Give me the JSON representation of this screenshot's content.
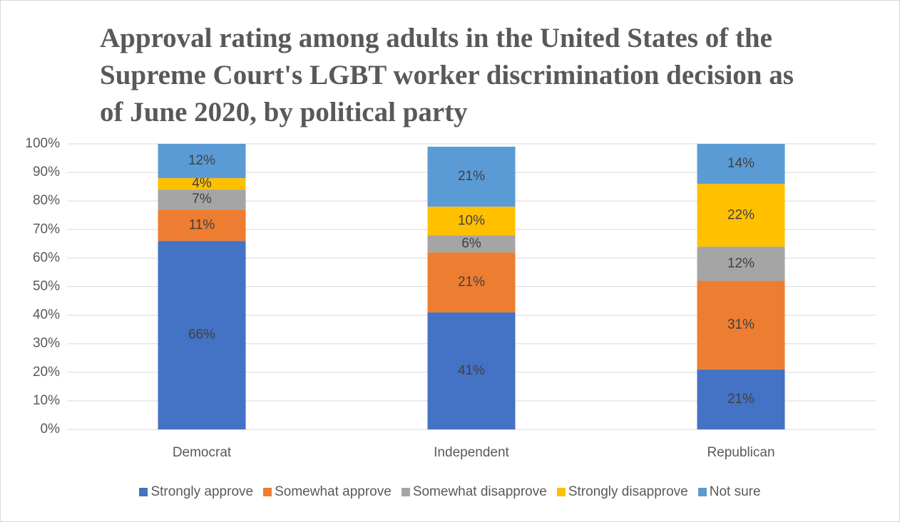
{
  "chart_data": {
    "type": "stacked_bar",
    "title": "Approval rating among adults in the United States of the Supreme Court's LGBT worker discrimination decision as of June 2020, by political party",
    "categories": [
      "Democrat",
      "Independent",
      "Republican"
    ],
    "series": [
      {
        "name": "Strongly approve",
        "color": "#4472c4",
        "values": [
          66,
          41,
          21
        ],
        "value_labels": [
          "66%",
          "41%",
          "21%"
        ]
      },
      {
        "name": "Somewhat approve",
        "color": "#ed7d31",
        "values": [
          11,
          21,
          31
        ],
        "value_labels": [
          "11%",
          "21%",
          "31%"
        ]
      },
      {
        "name": "Somewhat disapprove",
        "color": "#a5a5a5",
        "values": [
          7,
          6,
          12
        ],
        "value_labels": [
          "7%",
          "6%",
          "12%"
        ]
      },
      {
        "name": "Strongly disapprove",
        "color": "#ffc000",
        "values": [
          4,
          10,
          22
        ],
        "value_labels": [
          "4%",
          "10%",
          "22%"
        ]
      },
      {
        "name": "Not sure",
        "color": "#5b9bd5",
        "values": [
          12,
          21,
          14
        ],
        "value_labels": [
          "12%",
          "21%",
          "14%"
        ]
      }
    ],
    "ylim": [
      0,
      100
    ],
    "yticks": [
      {
        "value": 0,
        "label": "0%"
      },
      {
        "value": 10,
        "label": "10%"
      },
      {
        "value": 20,
        "label": "20%"
      },
      {
        "value": 30,
        "label": "30%"
      },
      {
        "value": 40,
        "label": "40%"
      },
      {
        "value": 50,
        "label": "50%"
      },
      {
        "value": 60,
        "label": "60%"
      },
      {
        "value": 70,
        "label": "70%"
      },
      {
        "value": 80,
        "label": "80%"
      },
      {
        "value": 90,
        "label": "90%"
      },
      {
        "value": 100,
        "label": "100%"
      }
    ],
    "grid": true,
    "legend": "bottom"
  }
}
